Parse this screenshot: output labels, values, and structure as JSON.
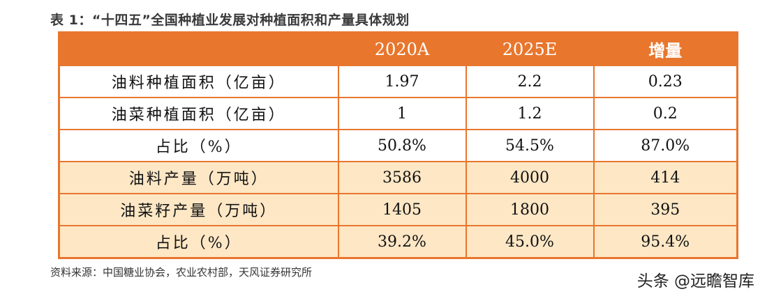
{
  "title": "表 1：“十四五”全国种植业发展对种植面积和产量具体规划",
  "table": {
    "headers": [
      "",
      "2020A",
      "2025E",
      "增量"
    ],
    "rows": [
      [
        "油料种植面积（亿亩）",
        "1.97",
        "2.2",
        "0.23"
      ],
      [
        "油菜种植面积（亿亩）",
        "1",
        "1.2",
        "0.2"
      ],
      [
        "占比（%）",
        "50.8%",
        "54.5%",
        "87.0%"
      ],
      [
        "油料产量（万吨）",
        "3586",
        "4000",
        "414"
      ],
      [
        "油菜籽产量（万吨）",
        "1405",
        "1800",
        "395"
      ],
      [
        "占比（%）",
        "39.2%",
        "45.0%",
        "95.4%"
      ]
    ]
  },
  "colors": {
    "header_bg": "#e8762d",
    "shaded_row_bg": "#fde7c5"
  },
  "source": "资料来源：中国糖业协会，农业农村部，天风证券研究所",
  "watermark": "头条 @远瞻智库"
}
